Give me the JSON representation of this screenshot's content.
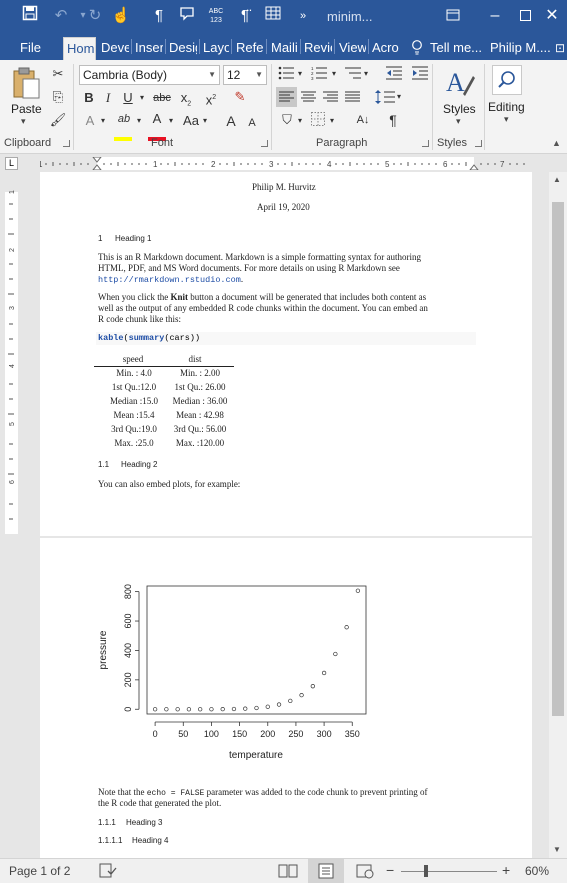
{
  "titlebar": {
    "doc_title": "minim...",
    "icons": [
      "save-icon",
      "undo-icon",
      "redo-icon",
      "touch-mode-icon",
      "paragraph-mark-icon",
      "comment-icon",
      "spelling-icon",
      "pilcrow-format-icon",
      "table-icon",
      "more-icon"
    ],
    "window_buttons": [
      "ribbon-display-options-icon",
      "minimize-icon",
      "restore-icon",
      "close-icon"
    ]
  },
  "tabs": [
    {
      "label": "File"
    },
    {
      "label": "Hom"
    },
    {
      "label": "Deve"
    },
    {
      "label": "Inser"
    },
    {
      "label": "Desig"
    },
    {
      "label": "Layo"
    },
    {
      "label": "Refe"
    },
    {
      "label": "Maili"
    },
    {
      "label": "Revie"
    },
    {
      "label": "View"
    },
    {
      "label": "Acro"
    }
  ],
  "tell_me": "Tell me...",
  "user": "Philip M....",
  "ribbon": {
    "paste": "Paste",
    "clipboard": "Clipboard",
    "font_name": "Cambria (Body)",
    "font_size": "12",
    "font": "Font",
    "paragraph": "Paragraph",
    "styles_btn": "Styles",
    "styles": "Styles",
    "editing": "Editing",
    "bold": "B",
    "italic": "I",
    "underline": "U",
    "strike": "abc",
    "subscript": "x",
    "superscript": "x",
    "change_case": "Aa",
    "grow": "A",
    "shrink": "A",
    "highlight": "ab",
    "font_color": "A",
    "text_effects": "A",
    "pilcrow": "¶"
  },
  "colors": {
    "titlebar": "#2b579a",
    "highlight_yellow": "#ffff00",
    "font_color_red": "#e81123",
    "link": "#1f4ea6"
  },
  "document": {
    "author": "Philip M. Hurvitz",
    "date": "April 19, 2020",
    "heading1_num": "1",
    "heading1": "Heading 1",
    "para1_line1": "This is an R Markdown document. Markdown is a simple formatting syntax for authoring",
    "para1_line2": "HTML, PDF, and MS Word documents. For more details on using R Markdown see",
    "para1_link": "http://rmarkdown.rstudio.com",
    "para1_end": ".",
    "para2_l1_pre": "When you click the ",
    "para2_l1_bold": "Knit",
    "para2_l1_post": " button a document will be generated that includes both content as",
    "para2_line2": "well as the output of any embedded R code chunks within the document. You can embed an",
    "para2_line3": "R code chunk like this:",
    "code_fn1": "kable",
    "code_p1": "(",
    "code_fn2": "summary",
    "code_rest": "(cars))",
    "table": {
      "headers": [
        "speed",
        "dist"
      ],
      "rows": [
        [
          "Min. : 4.0",
          "Min. : 2.00"
        ],
        [
          "1st Qu.:12.0",
          "1st Qu.: 26.00"
        ],
        [
          "Median :15.0",
          "Median : 36.00"
        ],
        [
          "Mean :15.4",
          "Mean : 42.98"
        ],
        [
          "3rd Qu.:19.0",
          "3rd Qu.: 56.00"
        ],
        [
          "Max. :25.0",
          "Max. :120.00"
        ]
      ]
    },
    "heading2_num": "1.1",
    "heading2": "Heading 2",
    "para3": "You can also embed plots, for example:",
    "para4_pre": "Note that the ",
    "para4_code": "echo = FALSE",
    "para4_post": " parameter was added to the code chunk to prevent printing of",
    "para4_line2": "the R code that generated the plot.",
    "heading3_num": "1.1.1",
    "heading3": "Heading 3",
    "heading4_num": "1.1.1.1",
    "heading4": "Heading 4"
  },
  "chart_data": {
    "type": "scatter",
    "xlabel": "temperature",
    "ylabel": "pressure",
    "x": [
      0,
      20,
      40,
      60,
      80,
      100,
      120,
      140,
      160,
      180,
      200,
      220,
      240,
      260,
      280,
      300,
      320,
      340,
      360
    ],
    "y": [
      0.0002,
      0.0012,
      0.006,
      0.03,
      0.09,
      0.27,
      0.75,
      1.85,
      4.2,
      8.8,
      17.3,
      32.1,
      57,
      96,
      157,
      247,
      376,
      558,
      806
    ],
    "xticks": [
      0,
      50,
      100,
      150,
      200,
      250,
      300,
      350
    ],
    "yticks": [
      0,
      200,
      400,
      600,
      800
    ],
    "xlim": [
      -14.4,
      374.4
    ],
    "ylim": [
      -32.24,
      838.24
    ],
    "grid": false
  },
  "status": {
    "page": "Page 1 of 2",
    "zoom": "60%",
    "icons": [
      "proofing-icon",
      "read-mode-icon",
      "print-layout-icon",
      "web-layout-icon"
    ]
  }
}
